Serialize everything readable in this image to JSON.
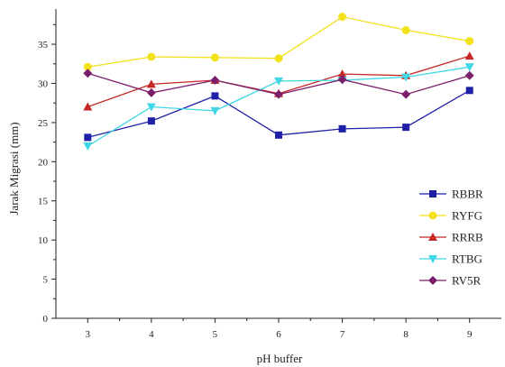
{
  "chart_data": {
    "type": "line",
    "title": "",
    "xlabel": "pH buffer",
    "ylabel": "Jarak Migrasi (mm)",
    "x": [
      3,
      4,
      5,
      6,
      7,
      8,
      9
    ],
    "xlim": [
      2.5,
      9.5
    ],
    "ylim": [
      0,
      39.5
    ],
    "yticks": [
      0,
      5,
      10,
      15,
      20,
      25,
      30,
      35
    ],
    "grid": false,
    "legend_position": "right",
    "series": [
      {
        "name": "RBBR",
        "color": "#1f1fa8",
        "marker": "square",
        "values": [
          23.1,
          25.2,
          28.4,
          23.4,
          24.2,
          24.4,
          29.1
        ]
      },
      {
        "name": "RYFG",
        "color": "#f2e21c",
        "marker": "circle",
        "values": [
          32.1,
          33.4,
          33.3,
          33.2,
          38.5,
          36.8,
          35.4
        ]
      },
      {
        "name": "RRRB",
        "color": "#c62828",
        "marker": "triangle-up",
        "values": [
          27.0,
          29.9,
          30.4,
          28.7,
          31.2,
          31.0,
          33.5
        ]
      },
      {
        "name": "RTBG",
        "color": "#3fd6e6",
        "marker": "triangle-down",
        "values": [
          22.0,
          27.0,
          26.5,
          30.3,
          30.4,
          30.8,
          32.1
        ]
      },
      {
        "name": "RV5R",
        "color": "#7b1f6b",
        "marker": "diamond",
        "values": [
          31.3,
          28.8,
          30.4,
          28.6,
          30.5,
          28.6,
          31.0
        ]
      }
    ]
  }
}
